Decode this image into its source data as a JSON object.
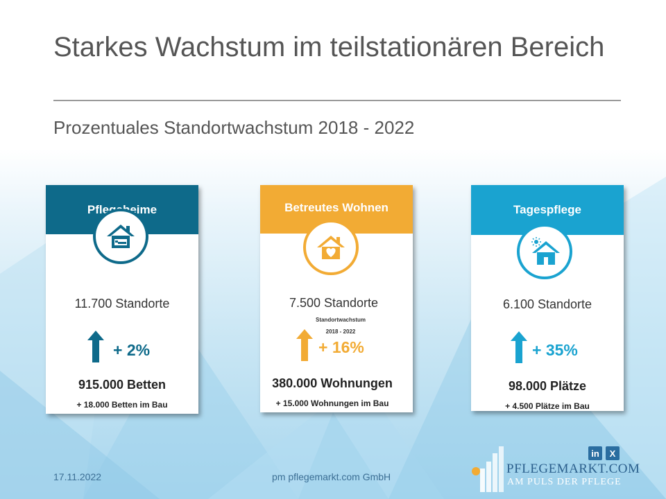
{
  "title": "Starkes Wachstum im teilstationären Bereich",
  "subtitle": "Prozentuales Standortwachstum 2018 - 2022",
  "cards": [
    {
      "header": "Pflegeheime",
      "color": "#0e6a8a",
      "icon": "house-bed-icon",
      "locations": "11.700 Standorte",
      "growth": "+ 2%",
      "growth_value": 2,
      "capacity": "915.000 Betten",
      "construction": "+ 18.000 Betten im Bau"
    },
    {
      "header": "Betreutes Wohnen",
      "color": "#f2ab34",
      "icon": "house-heart-icon",
      "locations": "7.500 Standorte",
      "note_line1": "Standortwachstum",
      "note_line2": "2018 - 2022",
      "growth": "+ 16%",
      "growth_value": 16,
      "capacity": "380.000 Wohnungen",
      "construction": "+ 15.000 Wohnungen im Bau"
    },
    {
      "header": "Tagespflege",
      "color": "#1aa3d0",
      "icon": "house-sun-icon",
      "locations": "6.100 Standorte",
      "growth": "+ 35%",
      "growth_value": 35,
      "capacity": "98.000 Plätze",
      "construction": "+ 4.500 Plätze im Bau"
    }
  ],
  "footer": {
    "date": "17.11.2022",
    "company": "pm pflegemarkt.com GmbH"
  },
  "social": {
    "linkedin": "in",
    "xing": "X"
  },
  "logo": {
    "name": "PFLEGEMARKT.COM",
    "tagline": "AM PULS DER PFLEGE"
  }
}
